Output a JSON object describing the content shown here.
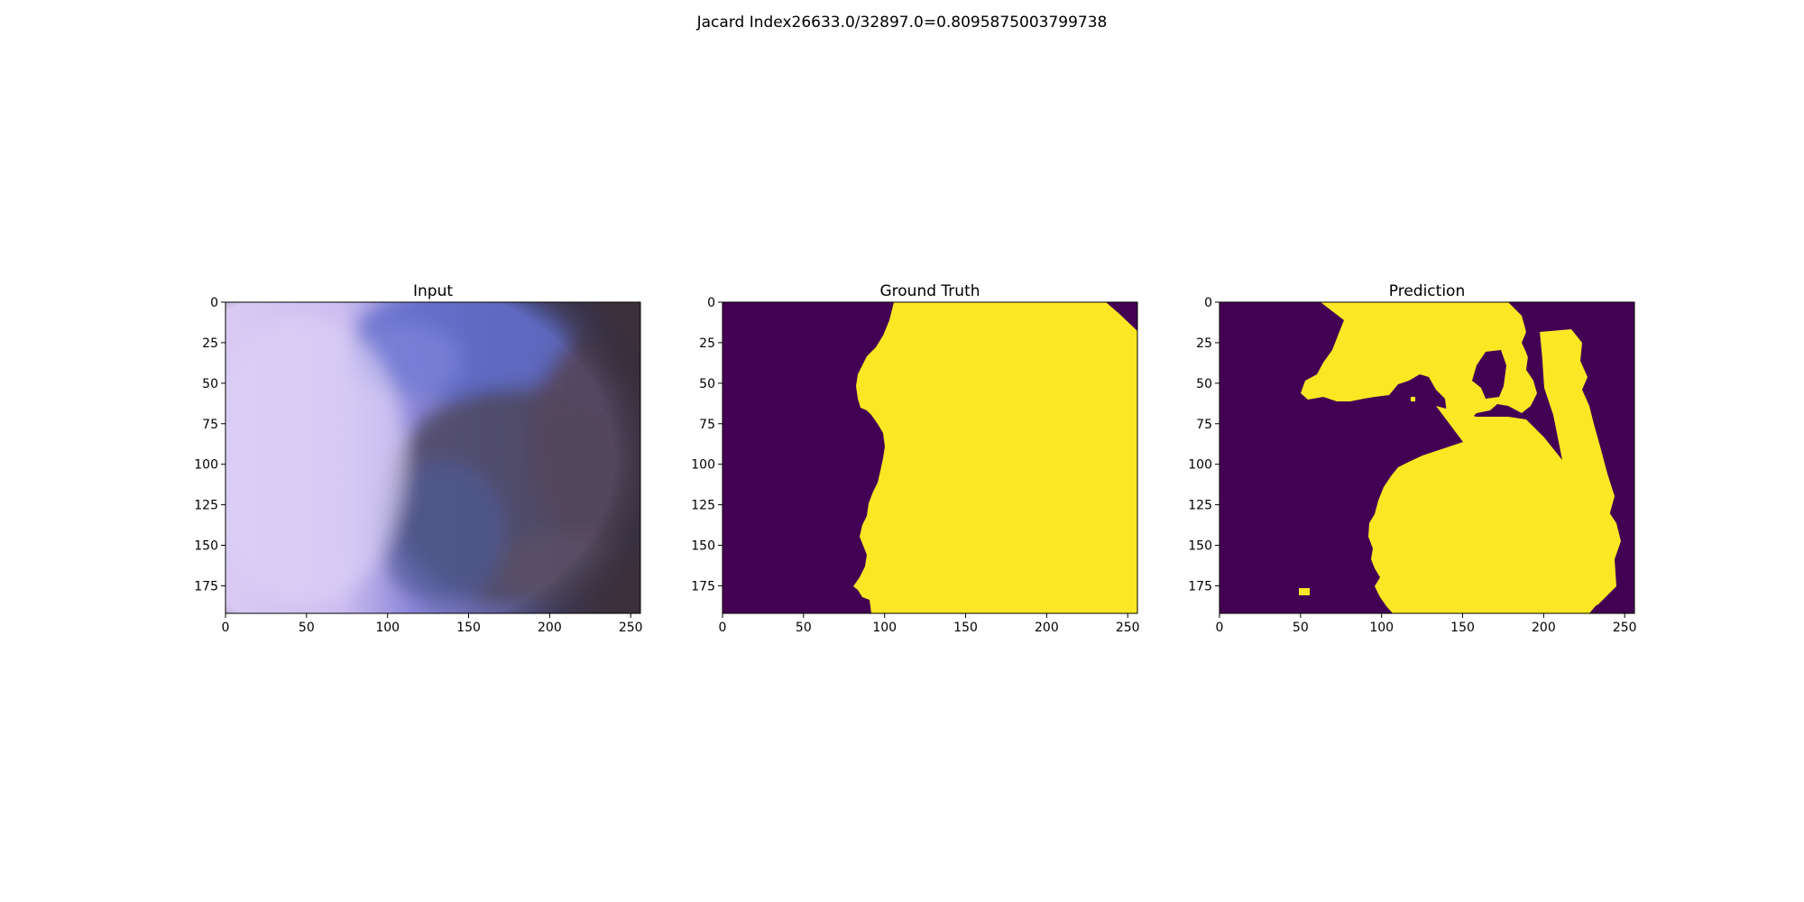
{
  "figure": {
    "suptitle": "Jacard Index26633.0/32897.0=0.8095875003799738"
  },
  "colors": {
    "mask_background": "#440154",
    "mask_foreground": "#fde725",
    "axis": "#000000"
  },
  "chart_data": [
    {
      "type": "heatmap",
      "title": "Input",
      "content": "dermoscopy-image",
      "xlim": [
        0,
        256
      ],
      "ylim": [
        192,
        0
      ],
      "xticks": [
        0,
        50,
        100,
        150,
        200,
        250
      ],
      "yticks": [
        0,
        25,
        50,
        75,
        100,
        125,
        150,
        175
      ]
    },
    {
      "type": "heatmap",
      "title": "Ground Truth",
      "content": "binary-mask",
      "xlim": [
        0,
        256
      ],
      "ylim": [
        192,
        0
      ],
      "xticks": [
        0,
        50,
        100,
        150,
        200,
        250
      ],
      "yticks": [
        0,
        25,
        50,
        75,
        100,
        125,
        150,
        175
      ]
    },
    {
      "type": "heatmap",
      "title": "Prediction",
      "content": "binary-mask",
      "xlim": [
        0,
        256
      ],
      "ylim": [
        192,
        0
      ],
      "xticks": [
        0,
        50,
        100,
        150,
        200,
        250
      ],
      "yticks": [
        0,
        25,
        50,
        75,
        100,
        125,
        150,
        175
      ]
    }
  ]
}
